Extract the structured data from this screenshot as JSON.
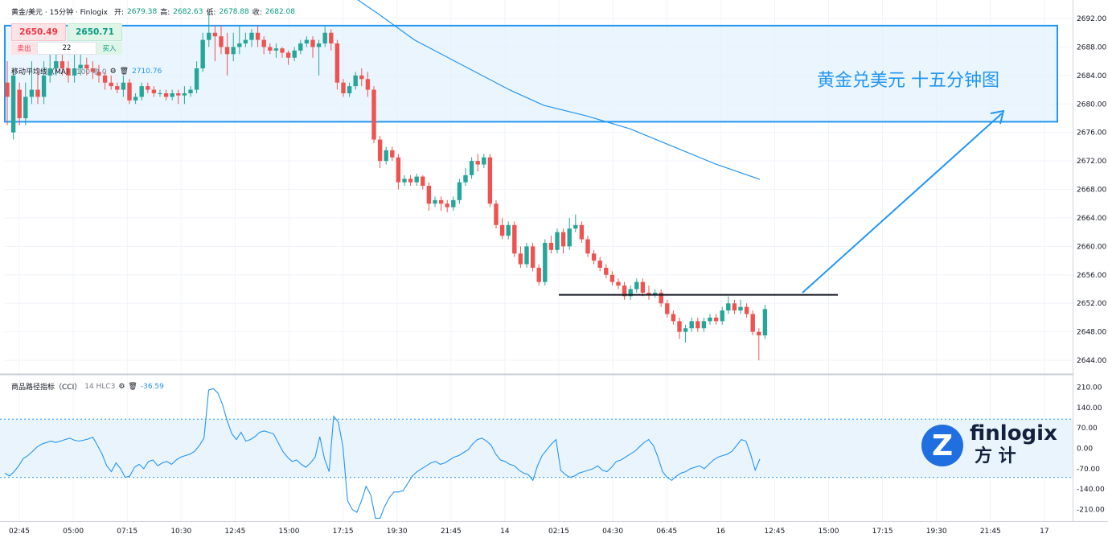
{
  "header": {
    "symbol": "黄金/美元 · 15分钟 · Finlogix",
    "open_label": "开:",
    "open_value": "2679.38",
    "high_label": "高:",
    "high_value": "2682.63",
    "low_label": "低:",
    "low_value": "2678.88",
    "close_label": "收:",
    "close_value": "2682.08"
  },
  "trade": {
    "sell_price": "2650.49",
    "buy_price": "2650.71",
    "sell_label": "卖出",
    "buy_label": "买入",
    "quantity": "22"
  },
  "ma_indicator": {
    "label": "移动平均线（MA）",
    "params": "100 收 0",
    "value": "2710.76",
    "gear_icon": "gear-icon",
    "trash_icon": "trash-icon"
  },
  "cci_indicator": {
    "label": "商品路径指标（CCI）",
    "params": "14 HLC3",
    "value": "-36.59",
    "gear_icon": "gear-icon",
    "trash_icon": "trash-icon"
  },
  "annotation": {
    "text": "黄金兑美元 十五分钟图"
  },
  "logo": {
    "text_en": "finlogix",
    "text_cn": "方 计"
  },
  "colors": {
    "up": "#26a69a",
    "down": "#ef5350",
    "ma_line": "#2196f3",
    "zone_fill": "#e3f2fd",
    "zone_border": "#2196f3",
    "cci_line": "#2196f3",
    "cci_band": "#eaf4fd",
    "arrow": "#2196f3",
    "logo_blue": "#1f6fe0"
  },
  "chart_data": [
    {
      "type": "candlestick",
      "title": "",
      "y_ticks": [
        "2692.00",
        "2688.00",
        "2684.00",
        "2680.00",
        "2676.00",
        "2672.00",
        "2668.00",
        "2664.00",
        "2660.00",
        "2656.00",
        "2652.00",
        "2648.00",
        "2644.00"
      ],
      "ylim": [
        2642.2,
        2694.6
      ],
      "x_ticks": [
        "02:45",
        "05:00",
        "07:15",
        "10:30",
        "12:45",
        "15:00",
        "17:15",
        "19:30",
        "21:45",
        "14",
        "02:15",
        "04:30",
        "06:45",
        "16",
        "12:45",
        "15:00",
        "17:15",
        "19:30",
        "21:45",
        "17"
      ],
      "zone": {
        "y_top": 2691.0,
        "y_bottom": 2677.5
      },
      "support_level": 2653.2,
      "ma_series": [
        {
          "x": 0,
          "y": 2696.5
        },
        {
          "x": 0.06,
          "y": 2695.0
        },
        {
          "x": 0.12,
          "y": 2692.5
        },
        {
          "x": 0.2,
          "y": 2689.0
        },
        {
          "x": 0.3,
          "y": 2685.8
        },
        {
          "x": 0.42,
          "y": 2682.0
        },
        {
          "x": 0.5,
          "y": 2679.8
        },
        {
          "x": 0.6,
          "y": 2678.3
        },
        {
          "x": 0.7,
          "y": 2676.5
        },
        {
          "x": 0.8,
          "y": 2674.0
        },
        {
          "x": 0.9,
          "y": 2671.5
        },
        {
          "x": 1.0,
          "y": 2669.4
        }
      ],
      "candles": [
        [
          2683,
          2681,
          2686,
          2677
        ],
        [
          2676,
          2684,
          2685,
          2675
        ],
        [
          2682,
          2678,
          2683,
          2677
        ],
        [
          2678,
          2681,
          2683,
          2677
        ],
        [
          2681,
          2682,
          2686,
          2680
        ],
        [
          2682,
          2681,
          2685,
          2680
        ],
        [
          2681,
          2684,
          2686,
          2680
        ],
        [
          2684,
          2685,
          2687,
          2683
        ],
        [
          2685,
          2686,
          2687,
          2684
        ],
        [
          2686,
          2685,
          2688,
          2684
        ],
        [
          2685,
          2684,
          2686,
          2683
        ],
        [
          2684,
          2685,
          2687,
          2683
        ],
        [
          2685,
          2685.5,
          2687,
          2684
        ],
        [
          2685.5,
          2685,
          2686.5,
          2684
        ],
        [
          2685,
          2684.5,
          2686,
          2683.5
        ],
        [
          2684.5,
          2684,
          2685.5,
          2683
        ],
        [
          2684,
          2683,
          2684.5,
          2682
        ],
        [
          2683,
          2682.5,
          2684,
          2682
        ],
        [
          2682.5,
          2682,
          2683,
          2681.5
        ],
        [
          2682,
          2683,
          2684,
          2681
        ],
        [
          2683,
          2680.5,
          2683.5,
          2680
        ],
        [
          2680.5,
          2681,
          2681.5,
          2680
        ],
        [
          2681,
          2682.5,
          2683,
          2680.5
        ],
        [
          2682.5,
          2682,
          2683,
          2681.5
        ],
        [
          2682,
          2681.5,
          2682.5,
          2681
        ],
        [
          2681.5,
          2681.5,
          2682,
          2681
        ],
        [
          2681.5,
          2681,
          2682,
          2680.5
        ],
        [
          2681,
          2681.5,
          2682,
          2680.5
        ],
        [
          2681.5,
          2681.2,
          2682,
          2680
        ],
        [
          2681.2,
          2681.5,
          2682.5,
          2680
        ],
        [
          2681.5,
          2682,
          2682.5,
          2681
        ],
        [
          2682,
          2685,
          2686,
          2681.5
        ],
        [
          2685,
          2689,
          2690,
          2684.5
        ],
        [
          2689,
          2690,
          2693,
          2688
        ],
        [
          2690,
          2689.5,
          2691,
          2686
        ],
        [
          2689.5,
          2688,
          2691,
          2687
        ],
        [
          2688,
          2687,
          2690,
          2684
        ],
        [
          2687,
          2688,
          2690,
          2686
        ],
        [
          2688,
          2688.5,
          2691,
          2687
        ],
        [
          2688.5,
          2689,
          2690,
          2688
        ],
        [
          2689,
          2690,
          2690.5,
          2688
        ],
        [
          2690,
          2689,
          2691,
          2688
        ],
        [
          2689,
          2688,
          2689.5,
          2687
        ],
        [
          2688,
          2687.5,
          2688.5,
          2687
        ],
        [
          2687.5,
          2687.8,
          2688.5,
          2686.5
        ],
        [
          2687.8,
          2687.2,
          2688,
          2686.5
        ],
        [
          2687.2,
          2686.5,
          2687.5,
          2685.5
        ],
        [
          2686.5,
          2687.5,
          2688,
          2686
        ],
        [
          2687.5,
          2688.5,
          2689,
          2687
        ],
        [
          2688.5,
          2689,
          2689.5,
          2688
        ],
        [
          2689,
          2688,
          2689.5,
          2686.5
        ],
        [
          2688,
          2688.5,
          2689,
          2684
        ],
        [
          2688.5,
          2690,
          2691,
          2688
        ],
        [
          2690,
          2688.5,
          2690.5,
          2687.5
        ],
        [
          2688.5,
          2683,
          2689,
          2682
        ],
        [
          2683,
          2681.5,
          2683.5,
          2681
        ],
        [
          2681.5,
          2682.5,
          2683,
          2681
        ],
        [
          2682.5,
          2684,
          2684.5,
          2682
        ],
        [
          2684,
          2683.5,
          2685,
          2682.5
        ],
        [
          2683.5,
          2682,
          2684.5,
          2681
        ],
        [
          2682,
          2675,
          2682.5,
          2674.5
        ],
        [
          2675,
          2672,
          2675.5,
          2671
        ],
        [
          2672,
          2673.5,
          2674,
          2671.5
        ],
        [
          2673.5,
          2672.5,
          2674,
          2672
        ],
        [
          2672.5,
          2669,
          2673,
          2668
        ],
        [
          2669,
          2669.5,
          2670,
          2668.5
        ],
        [
          2669.5,
          2669,
          2670,
          2668.5
        ],
        [
          2669,
          2669.8,
          2670.2,
          2668.5
        ],
        [
          2669.8,
          2668.5,
          2670,
          2668
        ],
        [
          2668.5,
          2666,
          2669,
          2665
        ],
        [
          2666,
          2666.5,
          2667,
          2665.5
        ],
        [
          2666.5,
          2666,
          2667,
          2665
        ],
        [
          2666,
          2665.5,
          2666.5,
          2664.8
        ],
        [
          2665.5,
          2666.5,
          2667,
          2665
        ],
        [
          2666.5,
          2669,
          2669.5,
          2666
        ],
        [
          2669,
          2670,
          2671,
          2668.5
        ],
        [
          2670,
          2672,
          2672.5,
          2669.5
        ],
        [
          2672,
          2671.5,
          2673,
          2670.5
        ],
        [
          2671.5,
          2672.5,
          2673,
          2671
        ],
        [
          2672.5,
          2666,
          2673,
          2665.5
        ],
        [
          2666,
          2663,
          2666.5,
          2662.5
        ],
        [
          2663,
          2661.5,
          2664,
          2661
        ],
        [
          2661.5,
          2663,
          2663.5,
          2661
        ],
        [
          2663,
          2659,
          2663.5,
          2658.5
        ],
        [
          2659,
          2657.5,
          2660,
          2657
        ],
        [
          2657.5,
          2660,
          2660.5,
          2657
        ],
        [
          2660,
          2657,
          2660.5,
          2656.5
        ],
        [
          2657,
          2655,
          2657.5,
          2654.5
        ],
        [
          2655,
          2660.5,
          2661,
          2654.5
        ],
        [
          2660.5,
          2659.5,
          2661.5,
          2659
        ],
        [
          2659.5,
          2662,
          2662.5,
          2659
        ],
        [
          2662,
          2660,
          2662.5,
          2659
        ],
        [
          2660,
          2662.5,
          2664,
          2659.5
        ],
        [
          2662.5,
          2663,
          2664.5,
          2662
        ],
        [
          2663,
          2661,
          2663.5,
          2660.5
        ],
        [
          2661,
          2659,
          2661.5,
          2658.5
        ],
        [
          2659,
          2658,
          2659.5,
          2657.5
        ],
        [
          2658,
          2657,
          2658.5,
          2656.5
        ],
        [
          2657,
          2656,
          2657.5,
          2655.5
        ],
        [
          2656,
          2655,
          2656.5,
          2654.5
        ],
        [
          2655,
          2654.5,
          2655.5,
          2654
        ],
        [
          2654.5,
          2653,
          2655,
          2652.5
        ],
        [
          2653,
          2654,
          2654.5,
          2652.5
        ],
        [
          2654,
          2655,
          2655.5,
          2653.5
        ],
        [
          2655,
          2653.5,
          2655.5,
          2653
        ],
        [
          2653.5,
          2653.2,
          2654.5,
          2652.5
        ],
        [
          2653.2,
          2653.5,
          2654,
          2652.8
        ],
        [
          2653.5,
          2652,
          2654,
          2651.5
        ],
        [
          2652,
          2650.5,
          2652.5,
          2650
        ],
        [
          2650.5,
          2649.5,
          2651,
          2649
        ],
        [
          2649.5,
          2648,
          2650,
          2647
        ],
        [
          2648,
          2648.5,
          2649,
          2646.5
        ],
        [
          2648.5,
          2649.5,
          2650,
          2648
        ],
        [
          2649.5,
          2648.5,
          2650,
          2648
        ],
        [
          2648.5,
          2649.5,
          2650,
          2648
        ],
        [
          2649.5,
          2650,
          2650.5,
          2649
        ],
        [
          2650,
          2649.5,
          2650.5,
          2649
        ],
        [
          2649.5,
          2651,
          2651.5,
          2649
        ],
        [
          2651,
          2652,
          2653,
          2650.5
        ],
        [
          2652,
          2651,
          2652.5,
          2650.5
        ],
        [
          2651,
          2651.5,
          2652.5,
          2650.5
        ],
        [
          2651.5,
          2650.5,
          2652,
          2650
        ],
        [
          2650.5,
          2648,
          2651,
          2647.5
        ],
        [
          2648,
          2647.5,
          2648.5,
          2644
        ],
        [
          2647.5,
          2651.2,
          2651.8,
          2647
        ]
      ]
    },
    {
      "type": "line",
      "title": "",
      "name": "CCI",
      "y_ticks": [
        "210.00",
        "140.00",
        "70.00",
        "0.00",
        "-70.00",
        "-140.00",
        "-210.00"
      ],
      "ylim": [
        -250,
        250
      ],
      "band": [
        -100,
        100
      ],
      "values": [
        -85,
        -95,
        -80,
        -60,
        -35,
        -25,
        -10,
        5,
        15,
        20,
        25,
        20,
        25,
        30,
        35,
        28,
        25,
        28,
        32,
        38,
        10,
        -20,
        -60,
        -80,
        -50,
        -70,
        -100,
        -95,
        -65,
        -55,
        -70,
        -45,
        -40,
        -60,
        -50,
        -45,
        -55,
        -40,
        -30,
        -25,
        -20,
        -10,
        10,
        35,
        200,
        205,
        190,
        150,
        95,
        50,
        30,
        55,
        25,
        30,
        40,
        55,
        60,
        55,
        50,
        20,
        -10,
        -30,
        -45,
        -40,
        -55,
        -65,
        -50,
        -30,
        40,
        -35,
        -80,
        110,
        90,
        5,
        -180,
        -210,
        -220,
        -180,
        -130,
        -160,
        -240,
        -240,
        -200,
        -170,
        -150,
        -150,
        -145,
        -120,
        -95,
        -80,
        -70,
        -60,
        -50,
        -45,
        -55,
        -50,
        -40,
        -30,
        -25,
        -15,
        -5,
        15,
        30,
        35,
        25,
        10,
        -20,
        -40,
        -45,
        -55,
        -60,
        -75,
        -85,
        -90,
        -110,
        -60,
        -25,
        -5,
        15,
        30,
        -75,
        -90,
        -100,
        -95,
        -85,
        -80,
        -75,
        -70,
        -60,
        -75,
        -80,
        -65,
        -45,
        -40,
        -30,
        -20,
        -10,
        5,
        20,
        30,
        10,
        -30,
        -80,
        -100,
        -110,
        -95,
        -85,
        -80,
        -70,
        -65,
        -60,
        -70,
        -55,
        -40,
        -30,
        -25,
        -20,
        -10,
        10,
        30,
        25,
        -20,
        -75,
        -37
      ]
    }
  ]
}
